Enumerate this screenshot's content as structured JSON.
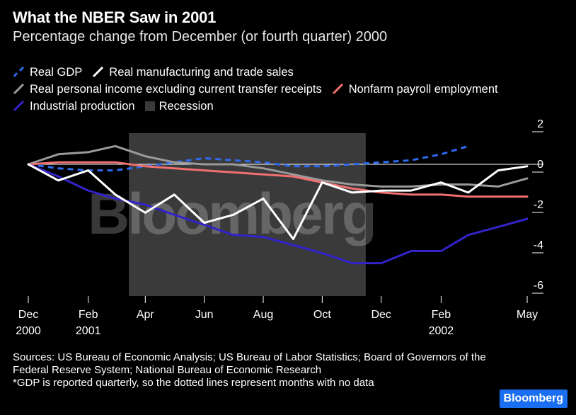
{
  "title": "What the NBER Saw in 2001",
  "subtitle": "Percentage change from December (or fourth quarter) 2000",
  "legend": [
    {
      "label": "Real GDP",
      "color": "#2f6bf0",
      "style": "dashed-slash"
    },
    {
      "label": "Real manufacturing and trade sales",
      "color": "#ffffff",
      "style": "slash"
    },
    {
      "label": "Real personal income excluding current transfer receipts",
      "color": "#9a9a9a",
      "style": "slash"
    },
    {
      "label": "Nonfarm payroll employment",
      "color": "#f07070",
      "style": "slash"
    },
    {
      "label": "Industrial production",
      "color": "#3323c8",
      "style": "slash"
    },
    {
      "label": "Recession",
      "color": "#3a3a3a",
      "style": "square"
    }
  ],
  "watermark": "Bloomberg",
  "sources": "Sources: US Bureau of Economic Analysis; US Bureau of Labor Statistics; Board of Governors of the Federal Reserve System; National Bureau of Economic Research",
  "note": "*GDP is reported quarterly, so the dotted lines represent months with no data",
  "badge": "Bloomberg",
  "chart_data": {
    "type": "line",
    "x": [
      "2000-12",
      "2001-01",
      "2001-02",
      "2001-03",
      "2001-04",
      "2001-05",
      "2001-06",
      "2001-07",
      "2001-08",
      "2001-09",
      "2001-10",
      "2001-11",
      "2001-12",
      "2002-01",
      "2002-02",
      "2002-03",
      "2002-04",
      "2002-05"
    ],
    "x_tick_labels": [
      {
        "x": "2000-12",
        "line1": "Dec",
        "line2": "2000"
      },
      {
        "x": "2001-02",
        "line1": "Feb",
        "line2": "2001"
      },
      {
        "x": "2001-04",
        "line1": "Apr",
        "line2": ""
      },
      {
        "x": "2001-06",
        "line1": "Jun",
        "line2": ""
      },
      {
        "x": "2001-08",
        "line1": "Aug",
        "line2": ""
      },
      {
        "x": "2001-10",
        "line1": "Oct",
        "line2": ""
      },
      {
        "x": "2001-12",
        "line1": "Dec",
        "line2": ""
      },
      {
        "x": "2002-02",
        "line1": "Feb",
        "line2": "2002"
      },
      {
        "x": "2002-05",
        "line1": "May",
        "line2": ""
      }
    ],
    "y_ticks": [
      2,
      0,
      -2,
      -4,
      -6
    ],
    "ylim": [
      -6.4,
      2.6
    ],
    "recession": {
      "start": "2001-03-15",
      "end": "2001-11-15"
    },
    "series": [
      {
        "name": "Real GDP",
        "color": "#2f6bf0",
        "dashed": true,
        "x": [
          "2000-12",
          "2001-01",
          "2001-02",
          "2001-03",
          "2001-04",
          "2001-05",
          "2001-06",
          "2001-07",
          "2001-08",
          "2001-09",
          "2001-10",
          "2001-11",
          "2001-12",
          "2002-01",
          "2002-02",
          "2002-03"
        ],
        "values": [
          0,
          -0.2,
          -0.3,
          -0.3,
          -0.1,
          0.1,
          0.3,
          0.2,
          0.1,
          -0.1,
          -0.1,
          0.0,
          0.1,
          0.2,
          0.5,
          0.9
        ]
      },
      {
        "name": "Real manufacturing and trade sales",
        "color": "#ffffff",
        "dashed": false,
        "x": [
          "2000-12",
          "2001-01",
          "2001-02",
          "2001-03",
          "2001-04",
          "2001-05",
          "2001-06",
          "2001-07",
          "2001-08",
          "2001-09",
          "2001-10",
          "2001-11",
          "2001-12",
          "2002-01",
          "2002-02",
          "2002-03",
          "2002-04",
          "2002-05"
        ],
        "values": [
          0,
          -0.8,
          -0.3,
          -1.5,
          -2.4,
          -1.5,
          -2.9,
          -2.5,
          -1.7,
          -3.7,
          -0.9,
          -1.4,
          -1.3,
          -1.3,
          -0.9,
          -1.4,
          -0.3,
          -0.1
        ]
      },
      {
        "name": "Real personal income excluding current transfer receipts",
        "color": "#9a9a9a",
        "dashed": false,
        "x": [
          "2000-12",
          "2001-01",
          "2001-02",
          "2001-03",
          "2001-04",
          "2001-05",
          "2001-06",
          "2001-07",
          "2001-08",
          "2001-09",
          "2001-10",
          "2001-11",
          "2001-12",
          "2002-01",
          "2002-02",
          "2002-03",
          "2002-04",
          "2002-05"
        ],
        "values": [
          0,
          0.5,
          0.6,
          0.9,
          0.4,
          0.1,
          0.0,
          0.0,
          -0.2,
          -0.5,
          -0.8,
          -1.0,
          -1.1,
          -1.1,
          -1.0,
          -1.0,
          -1.1,
          -0.7
        ]
      },
      {
        "name": "Nonfarm payroll employment",
        "color": "#f07070",
        "dashed": false,
        "x": [
          "2000-12",
          "2001-01",
          "2001-02",
          "2001-03",
          "2001-04",
          "2001-05",
          "2001-06",
          "2001-07",
          "2001-08",
          "2001-09",
          "2001-10",
          "2001-11",
          "2001-12",
          "2002-01",
          "2002-02",
          "2002-03",
          "2002-04",
          "2002-05"
        ],
        "values": [
          0,
          0.1,
          0.1,
          0.1,
          -0.1,
          -0.2,
          -0.3,
          -0.4,
          -0.5,
          -0.6,
          -0.9,
          -1.2,
          -1.4,
          -1.5,
          -1.5,
          -1.6,
          -1.6,
          -1.6
        ]
      },
      {
        "name": "Industrial production",
        "color": "#3323c8",
        "dashed": false,
        "x": [
          "2000-12",
          "2001-01",
          "2001-02",
          "2001-03",
          "2001-04",
          "2001-05",
          "2001-06",
          "2001-07",
          "2001-08",
          "2001-09",
          "2001-10",
          "2001-11",
          "2001-12",
          "2002-01",
          "2002-02",
          "2002-03",
          "2002-04",
          "2002-05"
        ],
        "values": [
          0,
          -0.6,
          -1.3,
          -1.7,
          -2.0,
          -2.5,
          -3.0,
          -3.5,
          -3.6,
          -4.0,
          -4.4,
          -4.9,
          -4.9,
          -4.3,
          -4.3,
          -3.5,
          -3.1,
          -2.7
        ]
      }
    ]
  }
}
